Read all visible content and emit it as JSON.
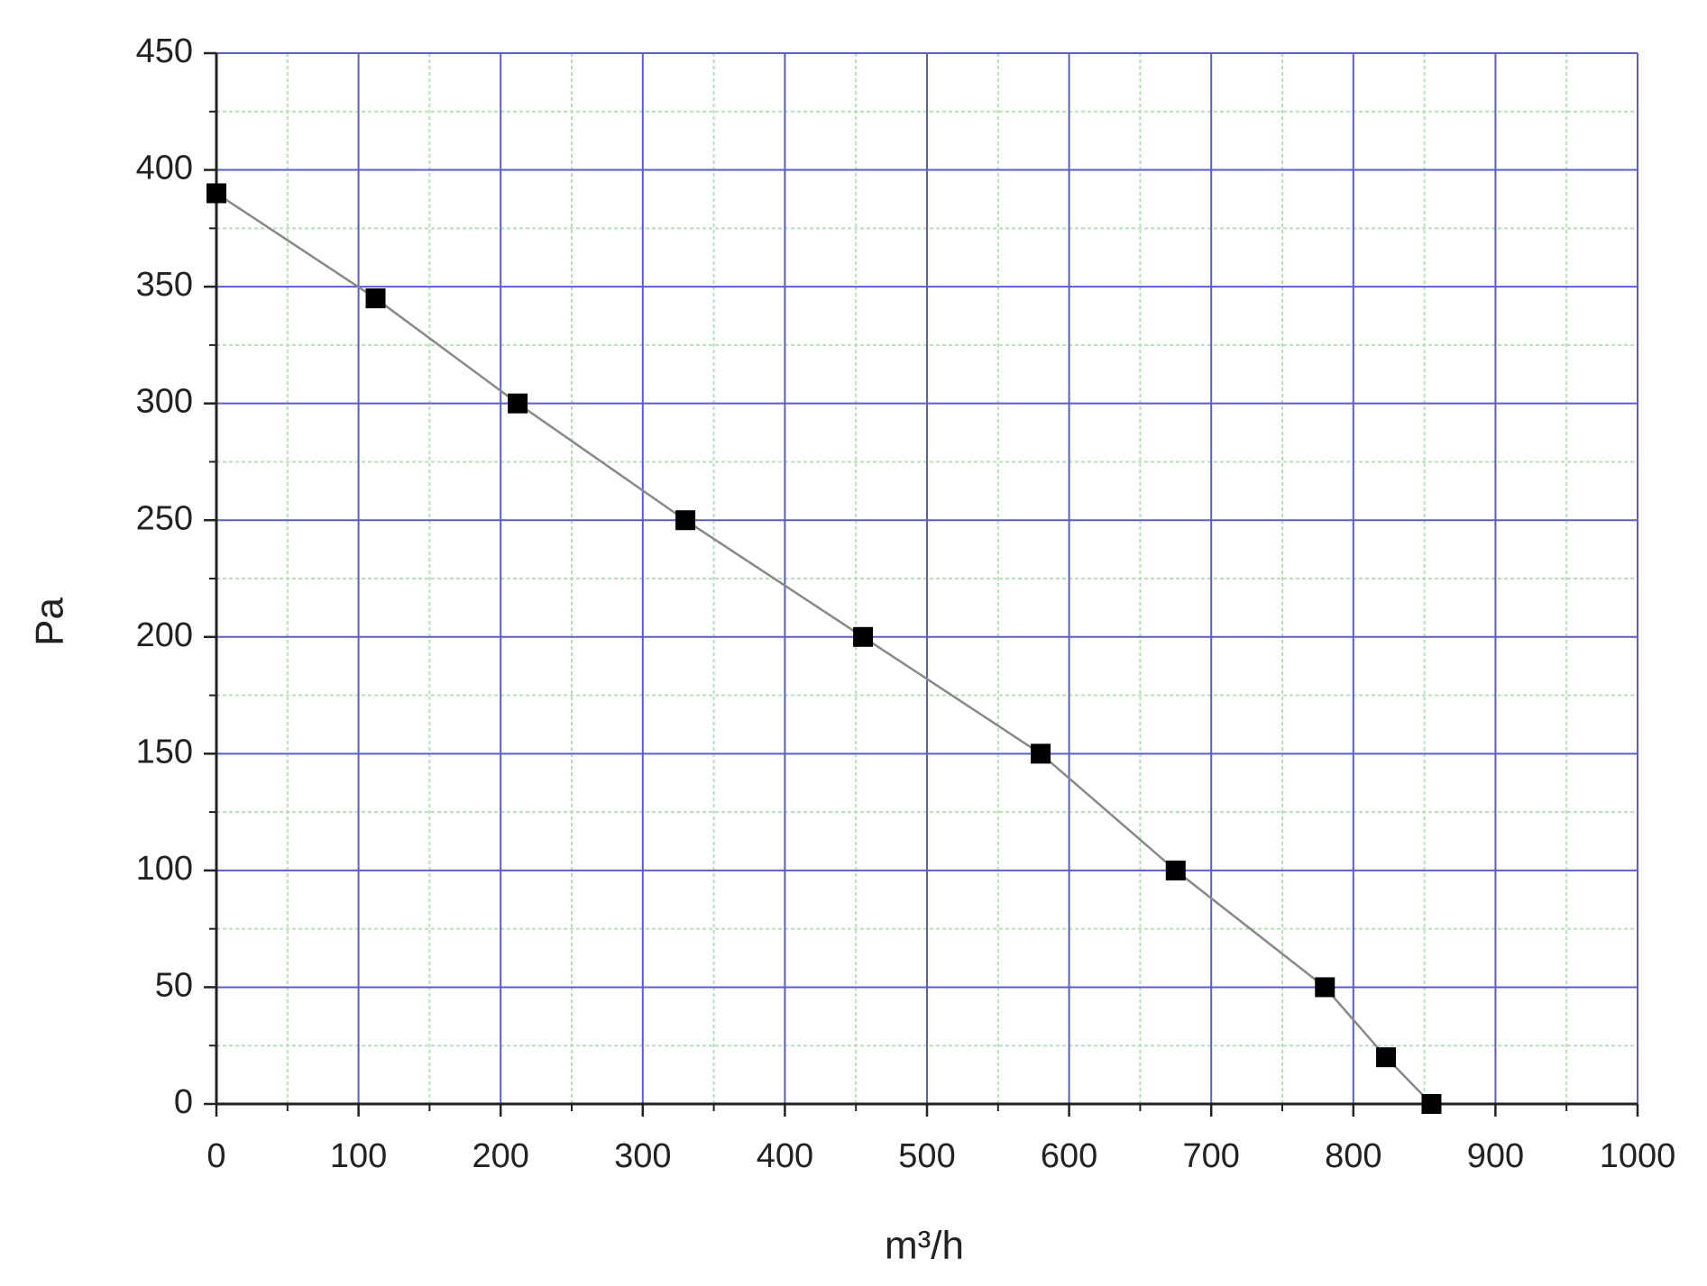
{
  "chart_data": {
    "type": "line",
    "x_label": "m³/h",
    "y_label": "Pa",
    "x": [
      0,
      112,
      212,
      330,
      455,
      580,
      675,
      780,
      823,
      855
    ],
    "series": [
      {
        "color": "#888888",
        "marker_color": "#000000",
        "values": [
          390,
          345,
          300,
          250,
          200,
          150,
          100,
          50,
          20,
          0
        ]
      }
    ],
    "xlim": [
      0,
      1000
    ],
    "xticks": [
      0,
      100,
      200,
      300,
      400,
      500,
      600,
      700,
      800,
      900,
      1000
    ],
    "ylim": [
      0,
      450
    ],
    "yticks": [
      0,
      50,
      100,
      150,
      200,
      250,
      300,
      350,
      400,
      450
    ],
    "grid": true,
    "grid_color": "#5c5ccf",
    "minor_grid": true,
    "minor_grid_color": "#b8e0b8"
  }
}
